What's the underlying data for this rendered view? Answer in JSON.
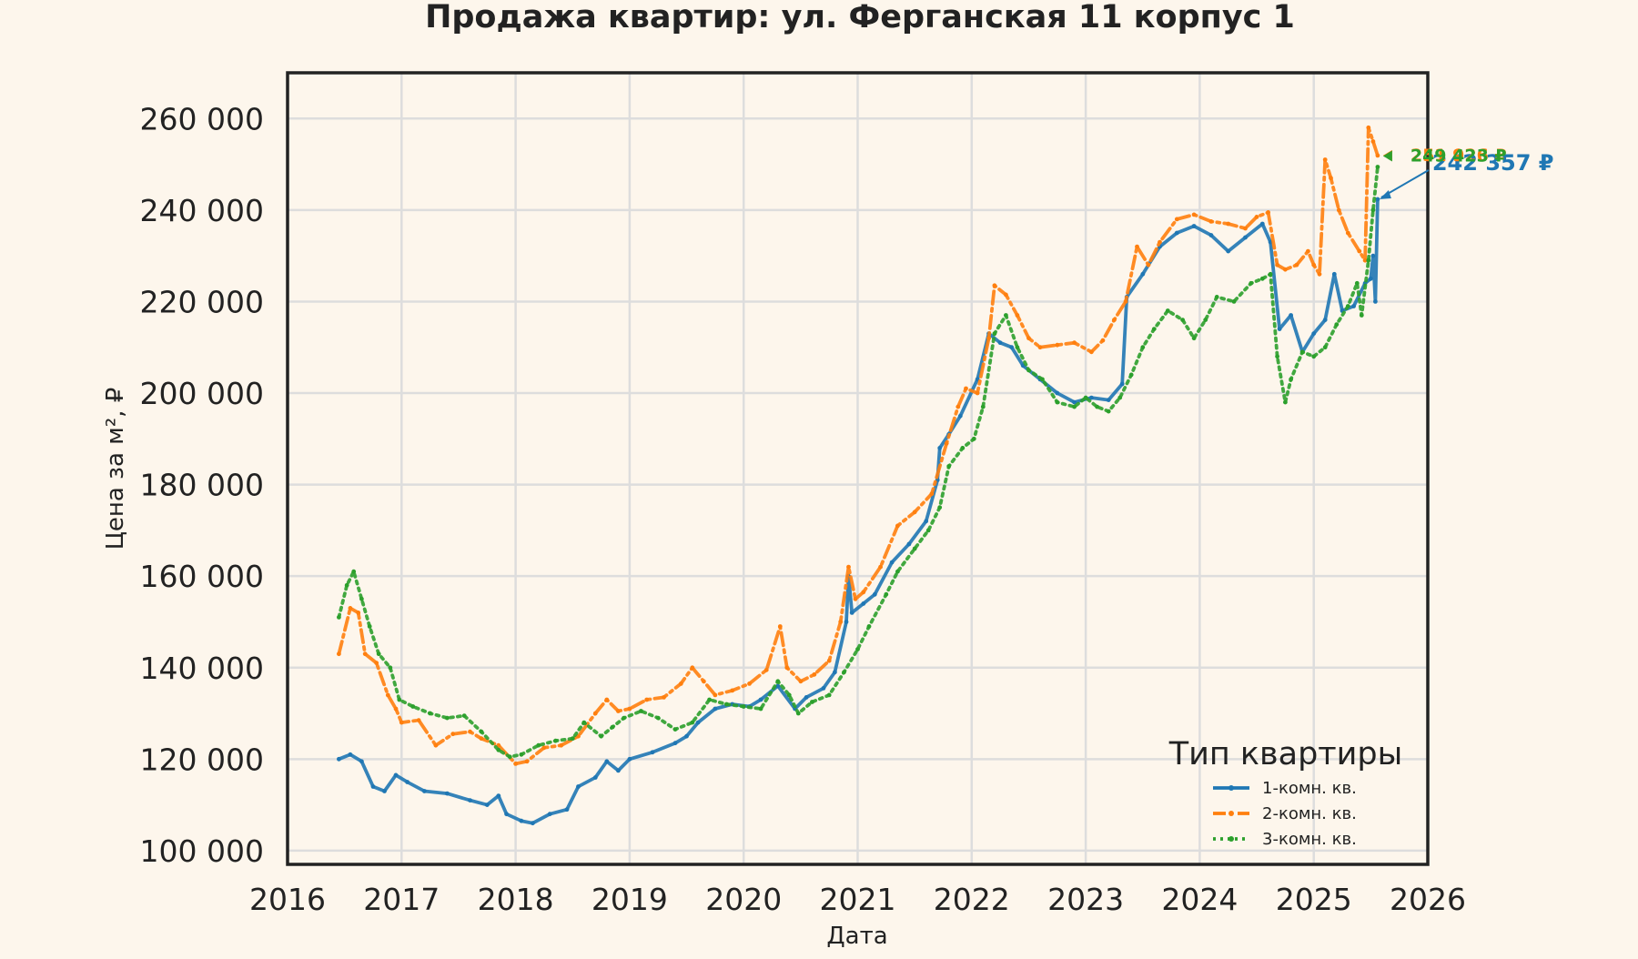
{
  "chart_data": {
    "type": "line",
    "title": "Продажа квартир: ул. Ферганская 11 корпус 1",
    "xlabel": "Дата",
    "ylabel": "Цена за м², ₽",
    "xlim": [
      2016.0,
      2026.0
    ],
    "ylim": [
      97000,
      270000
    ],
    "x_ticks": [
      "2016",
      "2017",
      "2018",
      "2019",
      "2020",
      "2021",
      "2022",
      "2023",
      "2024",
      "2025",
      "2026"
    ],
    "y_ticks": [
      "100 000",
      "120 000",
      "140 000",
      "160 000",
      "180 000",
      "200 000",
      "220 000",
      "240 000",
      "260 000"
    ],
    "grid": true,
    "legend": {
      "title": "Тип квартиры",
      "position": "bottom-right"
    },
    "series": [
      {
        "name": "1-комн. кв.",
        "color": "#1f77b4",
        "style": "solid",
        "last_label": "242 357 ₽",
        "points": [
          [
            2016.45,
            120000
          ],
          [
            2016.55,
            121000
          ],
          [
            2016.65,
            119500
          ],
          [
            2016.75,
            114000
          ],
          [
            2016.85,
            113000
          ],
          [
            2016.95,
            116500
          ],
          [
            2017.05,
            115000
          ],
          [
            2017.2,
            113000
          ],
          [
            2017.4,
            112500
          ],
          [
            2017.6,
            111000
          ],
          [
            2017.75,
            110000
          ],
          [
            2017.85,
            112000
          ],
          [
            2017.92,
            108000
          ],
          [
            2018.05,
            106500
          ],
          [
            2018.15,
            106000
          ],
          [
            2018.3,
            108000
          ],
          [
            2018.45,
            109000
          ],
          [
            2018.55,
            114000
          ],
          [
            2018.7,
            116000
          ],
          [
            2018.8,
            119500
          ],
          [
            2018.9,
            117500
          ],
          [
            2019.0,
            120000
          ],
          [
            2019.2,
            121500
          ],
          [
            2019.4,
            123500
          ],
          [
            2019.5,
            125000
          ],
          [
            2019.6,
            128000
          ],
          [
            2019.75,
            131000
          ],
          [
            2019.9,
            132000
          ],
          [
            2020.05,
            131500
          ],
          [
            2020.15,
            133000
          ],
          [
            2020.3,
            136000
          ],
          [
            2020.45,
            131000
          ],
          [
            2020.55,
            133500
          ],
          [
            2020.7,
            135500
          ],
          [
            2020.8,
            139000
          ],
          [
            2020.9,
            150000
          ],
          [
            2020.92,
            160000
          ],
          [
            2020.95,
            152000
          ],
          [
            2021.05,
            154000
          ],
          [
            2021.15,
            156000
          ],
          [
            2021.3,
            163000
          ],
          [
            2021.45,
            167000
          ],
          [
            2021.6,
            172000
          ],
          [
            2021.7,
            181000
          ],
          [
            2021.72,
            188000
          ],
          [
            2021.8,
            191000
          ],
          [
            2021.9,
            195000
          ],
          [
            2022.05,
            203000
          ],
          [
            2022.15,
            213000
          ],
          [
            2022.25,
            211000
          ],
          [
            2022.35,
            210000
          ],
          [
            2022.45,
            206000
          ],
          [
            2022.6,
            203000
          ],
          [
            2022.75,
            200000
          ],
          [
            2022.9,
            198000
          ],
          [
            2023.05,
            199000
          ],
          [
            2023.2,
            198500
          ],
          [
            2023.32,
            202000
          ],
          [
            2023.36,
            221000
          ],
          [
            2023.5,
            226000
          ],
          [
            2023.65,
            232000
          ],
          [
            2023.8,
            235000
          ],
          [
            2023.95,
            236500
          ],
          [
            2024.1,
            234500
          ],
          [
            2024.25,
            231000
          ],
          [
            2024.4,
            234000
          ],
          [
            2024.55,
            237000
          ],
          [
            2024.62,
            233000
          ],
          [
            2024.7,
            214000
          ],
          [
            2024.8,
            217000
          ],
          [
            2024.9,
            209000
          ],
          [
            2025.0,
            213000
          ],
          [
            2025.1,
            216000
          ],
          [
            2025.18,
            226000
          ],
          [
            2025.25,
            218000
          ],
          [
            2025.35,
            219000
          ],
          [
            2025.45,
            224000
          ],
          [
            2025.5,
            225000
          ],
          [
            2025.52,
            230000
          ],
          [
            2025.54,
            220000
          ],
          [
            2025.56,
            242357
          ]
        ]
      },
      {
        "name": "2-комн. кв.",
        "color": "#ff7f0e",
        "style": "dashdot",
        "last_label": "251 926 ₽",
        "points": [
          [
            2016.45,
            143000
          ],
          [
            2016.55,
            153000
          ],
          [
            2016.62,
            152000
          ],
          [
            2016.68,
            143000
          ],
          [
            2016.78,
            141000
          ],
          [
            2016.88,
            134000
          ],
          [
            2016.95,
            131000
          ],
          [
            2017.0,
            128000
          ],
          [
            2017.15,
            128500
          ],
          [
            2017.3,
            123000
          ],
          [
            2017.45,
            125500
          ],
          [
            2017.6,
            126000
          ],
          [
            2017.7,
            124500
          ],
          [
            2017.85,
            123000
          ],
          [
            2018.0,
            119000
          ],
          [
            2018.1,
            119500
          ],
          [
            2018.25,
            122500
          ],
          [
            2018.4,
            123000
          ],
          [
            2018.55,
            125000
          ],
          [
            2018.7,
            130000
          ],
          [
            2018.8,
            133000
          ],
          [
            2018.9,
            130500
          ],
          [
            2019.0,
            131000
          ],
          [
            2019.15,
            133000
          ],
          [
            2019.3,
            133500
          ],
          [
            2019.45,
            136500
          ],
          [
            2019.55,
            140000
          ],
          [
            2019.65,
            137000
          ],
          [
            2019.75,
            134000
          ],
          [
            2019.9,
            135000
          ],
          [
            2020.05,
            136500
          ],
          [
            2020.2,
            139500
          ],
          [
            2020.32,
            149000
          ],
          [
            2020.38,
            140000
          ],
          [
            2020.5,
            137000
          ],
          [
            2020.62,
            138500
          ],
          [
            2020.75,
            141500
          ],
          [
            2020.85,
            150000
          ],
          [
            2020.92,
            162000
          ],
          [
            2020.98,
            155000
          ],
          [
            2021.05,
            156500
          ],
          [
            2021.2,
            162000
          ],
          [
            2021.35,
            171000
          ],
          [
            2021.5,
            174000
          ],
          [
            2021.65,
            178000
          ],
          [
            2021.78,
            189000
          ],
          [
            2021.88,
            197000
          ],
          [
            2021.95,
            201000
          ],
          [
            2022.05,
            200000
          ],
          [
            2022.15,
            212000
          ],
          [
            2022.2,
            223500
          ],
          [
            2022.3,
            221500
          ],
          [
            2022.4,
            217000
          ],
          [
            2022.5,
            212000
          ],
          [
            2022.6,
            210000
          ],
          [
            2022.75,
            210500
          ],
          [
            2022.9,
            211000
          ],
          [
            2023.05,
            209000
          ],
          [
            2023.15,
            211500
          ],
          [
            2023.25,
            216000
          ],
          [
            2023.35,
            220000
          ],
          [
            2023.45,
            232000
          ],
          [
            2023.55,
            228000
          ],
          [
            2023.65,
            233000
          ],
          [
            2023.8,
            238000
          ],
          [
            2023.95,
            239000
          ],
          [
            2024.1,
            237500
          ],
          [
            2024.25,
            237000
          ],
          [
            2024.4,
            236000
          ],
          [
            2024.5,
            238500
          ],
          [
            2024.6,
            239500
          ],
          [
            2024.68,
            228000
          ],
          [
            2024.75,
            227000
          ],
          [
            2024.85,
            228000
          ],
          [
            2024.95,
            231000
          ],
          [
            2025.0,
            228000
          ],
          [
            2025.05,
            226000
          ],
          [
            2025.1,
            251000
          ],
          [
            2025.15,
            247000
          ],
          [
            2025.22,
            240000
          ],
          [
            2025.3,
            235000
          ],
          [
            2025.4,
            231000
          ],
          [
            2025.45,
            229000
          ],
          [
            2025.48,
            258000
          ],
          [
            2025.52,
            255000
          ],
          [
            2025.56,
            251926
          ]
        ]
      },
      {
        "name": "3-комн. кв.",
        "color": "#2ca02c",
        "style": "dotted",
        "last_label": "249 423 ₽",
        "points": [
          [
            2016.45,
            151000
          ],
          [
            2016.52,
            158000
          ],
          [
            2016.58,
            161000
          ],
          [
            2016.65,
            155000
          ],
          [
            2016.72,
            149000
          ],
          [
            2016.8,
            143000
          ],
          [
            2016.9,
            140000
          ],
          [
            2016.98,
            133000
          ],
          [
            2017.1,
            131500
          ],
          [
            2017.25,
            130000
          ],
          [
            2017.4,
            129000
          ],
          [
            2017.55,
            129500
          ],
          [
            2017.7,
            126000
          ],
          [
            2017.85,
            122000
          ],
          [
            2017.95,
            120500
          ],
          [
            2018.05,
            121000
          ],
          [
            2018.2,
            123000
          ],
          [
            2018.35,
            124000
          ],
          [
            2018.5,
            124500
          ],
          [
            2018.6,
            128000
          ],
          [
            2018.75,
            125000
          ],
          [
            2018.85,
            127000
          ],
          [
            2018.95,
            129000
          ],
          [
            2019.1,
            130500
          ],
          [
            2019.25,
            129000
          ],
          [
            2019.4,
            126500
          ],
          [
            2019.55,
            128000
          ],
          [
            2019.7,
            133000
          ],
          [
            2019.85,
            132000
          ],
          [
            2020.0,
            131500
          ],
          [
            2020.15,
            131000
          ],
          [
            2020.3,
            137000
          ],
          [
            2020.4,
            134000
          ],
          [
            2020.48,
            130000
          ],
          [
            2020.6,
            132500
          ],
          [
            2020.75,
            134000
          ],
          [
            2020.88,
            139000
          ],
          [
            2021.0,
            144000
          ],
          [
            2021.1,
            149000
          ],
          [
            2021.25,
            156000
          ],
          [
            2021.35,
            161000
          ],
          [
            2021.5,
            166000
          ],
          [
            2021.62,
            170000
          ],
          [
            2021.72,
            175000
          ],
          [
            2021.8,
            184000
          ],
          [
            2021.92,
            188000
          ],
          [
            2022.02,
            190000
          ],
          [
            2022.1,
            197000
          ],
          [
            2022.2,
            213000
          ],
          [
            2022.3,
            217000
          ],
          [
            2022.4,
            210000
          ],
          [
            2022.5,
            205000
          ],
          [
            2022.62,
            203000
          ],
          [
            2022.75,
            198000
          ],
          [
            2022.9,
            197000
          ],
          [
            2023.0,
            199000
          ],
          [
            2023.1,
            197000
          ],
          [
            2023.2,
            196000
          ],
          [
            2023.3,
            199000
          ],
          [
            2023.4,
            204000
          ],
          [
            2023.5,
            210000
          ],
          [
            2023.6,
            214000
          ],
          [
            2023.72,
            218000
          ],
          [
            2023.85,
            216000
          ],
          [
            2023.95,
            212000
          ],
          [
            2024.05,
            216000
          ],
          [
            2024.15,
            221000
          ],
          [
            2024.3,
            220000
          ],
          [
            2024.45,
            224000
          ],
          [
            2024.55,
            225000
          ],
          [
            2024.62,
            226000
          ],
          [
            2024.68,
            208000
          ],
          [
            2024.75,
            198000
          ],
          [
            2024.8,
            203000
          ],
          [
            2024.9,
            209000
          ],
          [
            2025.0,
            208000
          ],
          [
            2025.1,
            210000
          ],
          [
            2025.2,
            215000
          ],
          [
            2025.3,
            219000
          ],
          [
            2025.38,
            224000
          ],
          [
            2025.42,
            217000
          ],
          [
            2025.48,
            229000
          ],
          [
            2025.52,
            240000
          ],
          [
            2025.56,
            249423
          ]
        ]
      }
    ]
  }
}
